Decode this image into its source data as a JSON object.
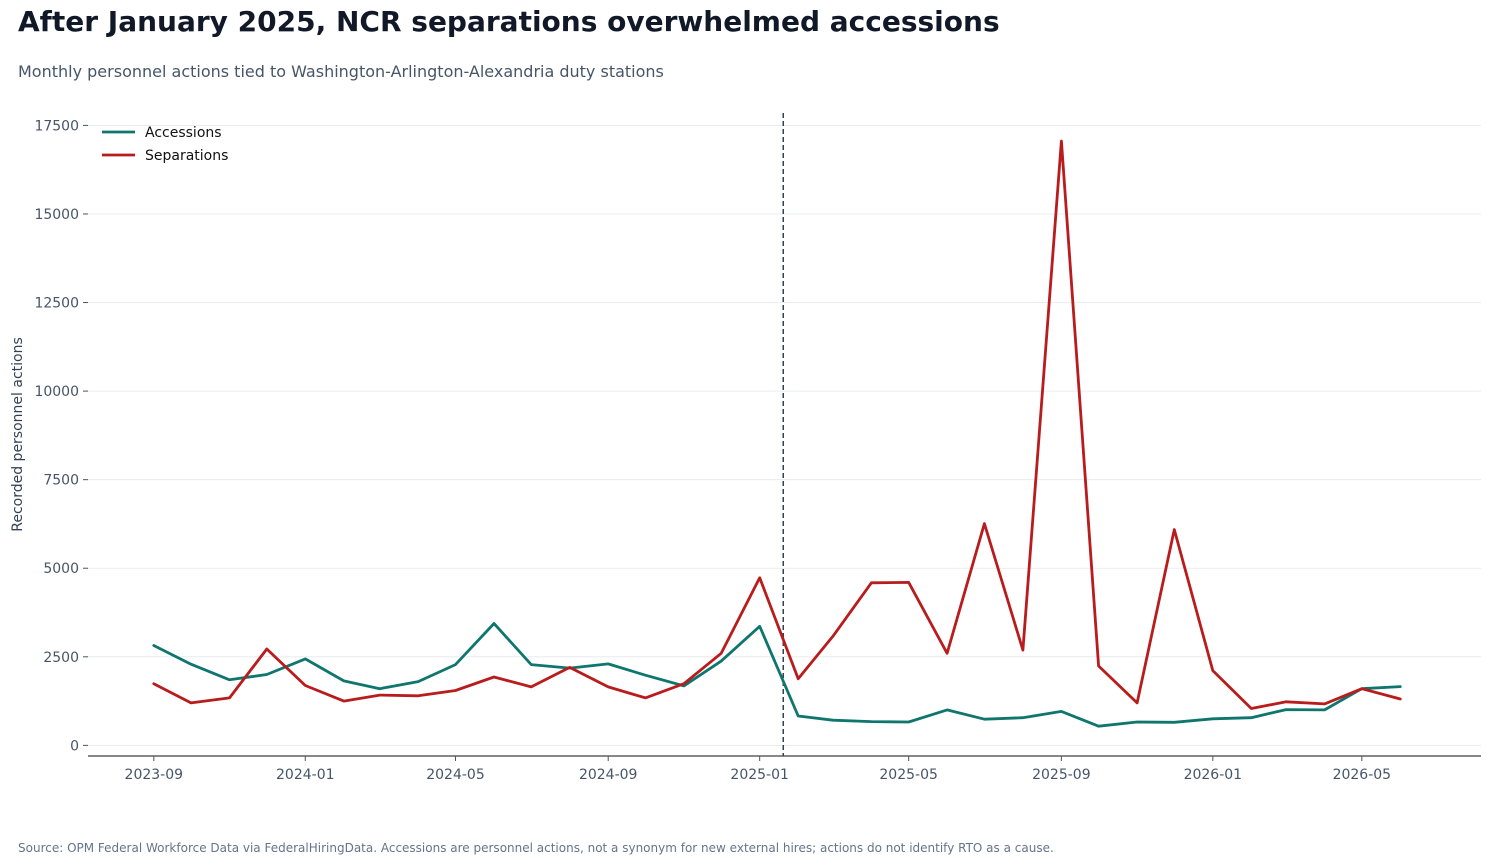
{
  "title": "After January 2025, NCR separations overwhelmed accessions",
  "subtitle": "Monthly personnel actions tied to Washington-Arlington-Alexandria duty stations",
  "source": "Source: OPM Federal Workforce Data via FederalHiringData. Accessions are personnel actions, not a synonym for new external hires; actions do not identify RTO as a cause.",
  "colors": {
    "accessions": "#0f766e",
    "separations": "#b91c1c",
    "reference_line": "#334155",
    "grid": "#e5e7eb"
  },
  "chart_data": {
    "type": "line",
    "ylabel": "Recorded personnel actions",
    "xlabel": "",
    "ylim": [
      -300,
      17850
    ],
    "xlim": [
      "2023-07-10",
      "2026-08-05"
    ],
    "grid": {
      "y": true,
      "x": false
    },
    "legend_position": "top-left",
    "y_ticks": [
      0,
      2500,
      5000,
      7500,
      10000,
      12500,
      15000,
      17500
    ],
    "x_ticks": [
      "2023-09",
      "2024-01",
      "2024-05",
      "2024-09",
      "2025-01",
      "2025-05",
      "2025-09",
      "2026-01",
      "2026-05"
    ],
    "reference_line": {
      "x": "2025-01-20",
      "style": "dashed"
    },
    "x": [
      "2023-09",
      "2023-10",
      "2023-11",
      "2023-12",
      "2024-01",
      "2024-02",
      "2024-03",
      "2024-04",
      "2024-05",
      "2024-06",
      "2024-07",
      "2024-08",
      "2024-09",
      "2024-10",
      "2024-11",
      "2024-12",
      "2025-01",
      "2025-02",
      "2025-03",
      "2025-04",
      "2025-05",
      "2025-06",
      "2025-07",
      "2025-08",
      "2025-09",
      "2025-10",
      "2025-11",
      "2025-12",
      "2026-01",
      "2026-02",
      "2026-03",
      "2026-04",
      "2026-05",
      "2026-06"
    ],
    "series": [
      {
        "name": "Accessions",
        "color": "#0f766e",
        "values": [
          2820,
          2290,
          1850,
          2000,
          2440,
          1820,
          1600,
          1800,
          2280,
          3440,
          2280,
          2180,
          2300,
          1980,
          1680,
          2380,
          3360,
          830,
          710,
          670,
          660,
          1000,
          740,
          780,
          960,
          540,
          660,
          650,
          750,
          780,
          1010,
          1000,
          1600,
          1660
        ]
      },
      {
        "name": "Separations",
        "color": "#b91c1c",
        "values": [
          1740,
          1200,
          1340,
          2720,
          1690,
          1250,
          1420,
          1400,
          1550,
          1930,
          1650,
          2200,
          1650,
          1340,
          1740,
          2600,
          4730,
          1880,
          3080,
          4590,
          4600,
          2600,
          6260,
          2690,
          17060,
          2240,
          1200,
          6090,
          2110,
          1040,
          1230,
          1170,
          1600,
          1310
        ]
      }
    ]
  }
}
